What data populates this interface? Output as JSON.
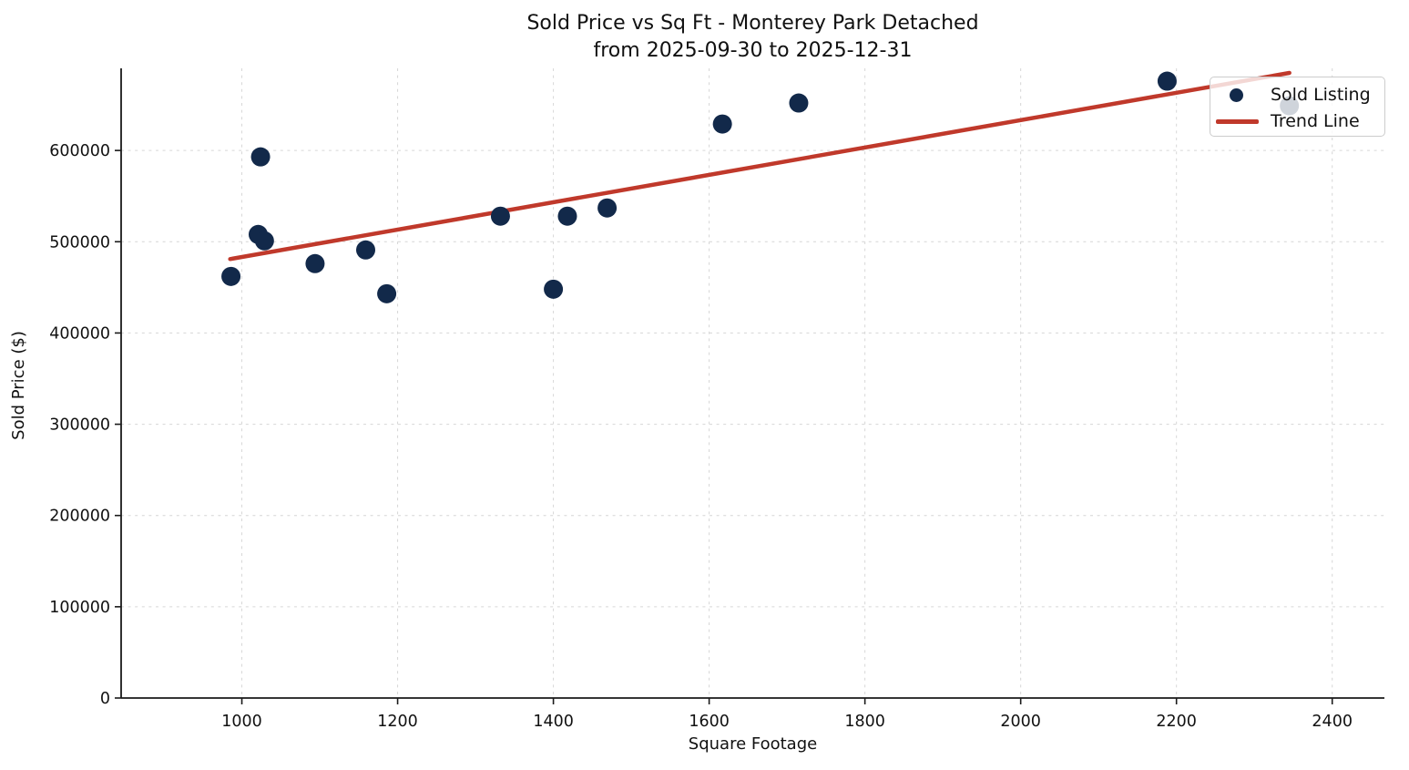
{
  "chart_data": {
    "type": "scatter",
    "title": "Sold Price vs Sq Ft - Monterey Park Detached",
    "subtitle": "from 2025-09-30 to 2025-12-31",
    "xlabel": "Square Footage",
    "ylabel": "Sold Price ($)",
    "xlim": [
      845,
      2467
    ],
    "ylim": [
      0,
      690000
    ],
    "x_ticks": [
      1000,
      1200,
      1400,
      1600,
      1800,
      2000,
      2200,
      2400
    ],
    "y_ticks": [
      0,
      100000,
      200000,
      300000,
      400000,
      500000,
      600000
    ],
    "grid": true,
    "legend": {
      "position": "upper right",
      "entries": [
        {
          "label": "Sold Listing",
          "type": "marker",
          "color": "#12294A"
        },
        {
          "label": "Trend Line",
          "type": "line",
          "color": "#C0392B"
        }
      ]
    },
    "series": [
      {
        "name": "Sold Listing",
        "type": "scatter",
        "color": "#12294A",
        "points": [
          [
            986,
            462000
          ],
          [
            1021,
            508000
          ],
          [
            1024,
            593000
          ],
          [
            1029,
            501000
          ],
          [
            1094,
            476000
          ],
          [
            1159,
            491000
          ],
          [
            1186,
            443000
          ],
          [
            1332,
            528000
          ],
          [
            1400,
            448000
          ],
          [
            1418,
            528000
          ],
          [
            1469,
            537000
          ],
          [
            1617,
            629000
          ],
          [
            1715,
            652000
          ],
          [
            2188,
            676000
          ],
          [
            2345,
            649000
          ]
        ]
      },
      {
        "name": "Trend Line",
        "type": "line",
        "color": "#C0392B",
        "points": [
          [
            985,
            481000
          ],
          [
            2345,
            685000
          ]
        ]
      }
    ],
    "colors": {
      "scatter": "#12294A",
      "trend": "#C0392B",
      "grid": "#d6d6d6",
      "axis": "#1a1a1a",
      "background": "#ffffff"
    }
  }
}
